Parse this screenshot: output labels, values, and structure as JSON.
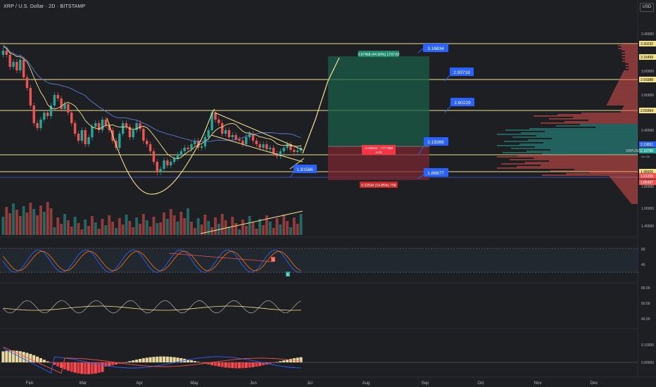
{
  "header": {
    "symbol_title": "XRP / U.S. Dollar · 2D · BITSTAMP",
    "currency_button": "USD"
  },
  "price_axis": {
    "ticks": [
      "3.40000",
      "3.30232",
      "3.16499",
      "3.00000",
      "2.93388",
      "2.80000",
      "2.65964",
      "2.40000",
      "2.19831",
      "2.18788",
      "1.96926",
      "1.91230",
      "1.86487",
      "1.80000",
      "1.60000",
      "1.40000"
    ],
    "symbol_label": "XRPUSD",
    "symbol_sub": "2d 13h"
  },
  "time_axis": [
    "Feb",
    "Mar",
    "Apr",
    "May",
    "Jun",
    "Jul",
    "Aug",
    "Sep",
    "Oct",
    "Nov",
    "Dec"
  ],
  "price_labels": [
    "3.16834",
    "2.93718",
    "2.60229",
    "2.19366",
    "1.86877",
    "1.91566"
  ],
  "position": {
    "target_text": "0.97468 (44.50%) 1797.82",
    "entry_line1": "-0.00534 · -777.568",
    "entry_line2": "3.03",
    "stop_text": "0.32534 (14.85%) 758"
  },
  "stoch_axis": [
    "80",
    "40",
    "20"
  ],
  "rsi_axis": [
    "80.00",
    "60.00",
    "40.00"
  ],
  "macd_axis": [
    "0.10000",
    "0.00000"
  ],
  "stoch_markers": [
    "B",
    "S"
  ],
  "colors": {
    "background": "#1e1f23",
    "bull": "#26a69a",
    "bear": "#ef5350",
    "level": "#f3e28e",
    "label_blue": "#2962ff",
    "tp_zone": "#1b5e4a",
    "sl_zone": "#7a2730"
  }
}
